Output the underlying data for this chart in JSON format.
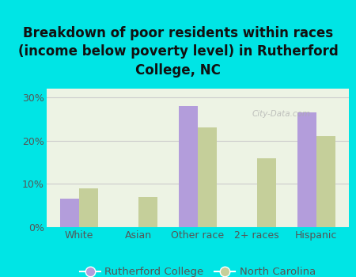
{
  "title": "Breakdown of poor residents within races\n(income below poverty level) in Rutherford\nCollege, NC",
  "categories": [
    "White",
    "Asian",
    "Other race",
    "2+ races",
    "Hispanic"
  ],
  "rutherford_values": [
    6.5,
    0,
    28.0,
    0,
    26.5
  ],
  "nc_values": [
    9.0,
    7.0,
    23.0,
    16.0,
    21.0
  ],
  "rutherford_color": "#b39ddb",
  "nc_color": "#c5cf9a",
  "background_color": "#00e5e5",
  "plot_bg_color": "#edf3e4",
  "ylim": [
    0,
    32
  ],
  "yticks": [
    0,
    10,
    20,
    30
  ],
  "ytick_labels": [
    "0%",
    "10%",
    "20%",
    "30%"
  ],
  "legend_labels": [
    "Rutherford College",
    "North Carolina"
  ],
  "bar_width": 0.32,
  "grid_color": "#cccccc",
  "title_fontsize": 12,
  "tick_fontsize": 9,
  "legend_fontsize": 9.5
}
